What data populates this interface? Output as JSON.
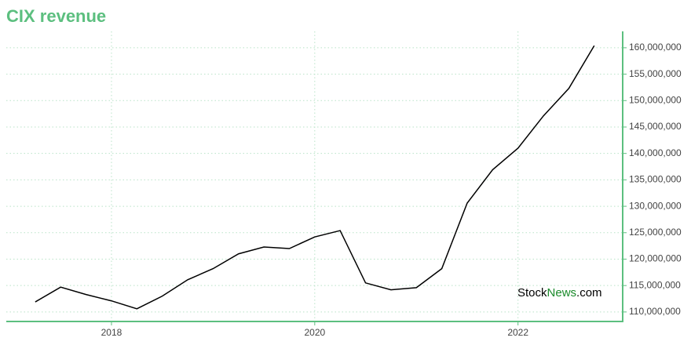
{
  "chart_data": {
    "type": "line",
    "title": "CIX revenue",
    "x": [
      2017.25,
      2017.5,
      2017.75,
      2018.0,
      2018.25,
      2018.5,
      2018.75,
      2019.0,
      2019.25,
      2019.5,
      2019.75,
      2020.0,
      2020.25,
      2020.5,
      2020.75,
      2021.0,
      2021.25,
      2021.5,
      2021.75,
      2022.0,
      2022.25,
      2022.5,
      2022.75
    ],
    "series": [
      {
        "name": "Revenue",
        "color": "#000000",
        "values": [
          111900000,
          114700000,
          113300000,
          112100000,
          110600000,
          113000000,
          116100000,
          118200000,
          121000000,
          122300000,
          122000000,
          124200000,
          125400000,
          115500000,
          114200000,
          114600000,
          118200000,
          130600000,
          136900000,
          141000000,
          147100000,
          152300000,
          160400000
        ]
      }
    ],
    "xlim": [
      2016.965,
      2023.03
    ],
    "xticks": [
      2018,
      2020,
      2022
    ],
    "ylim": [
      108200000,
      163100000
    ],
    "yticks": [
      {
        "value": 110000000,
        "label": "110,000,000"
      },
      {
        "value": 115000000,
        "label": "115,000,000"
      },
      {
        "value": 120000000,
        "label": "120,000,000"
      },
      {
        "value": 125000000,
        "label": "125,000,000"
      },
      {
        "value": 130000000,
        "label": "130,000,000"
      },
      {
        "value": 135000000,
        "label": "135,000,000"
      },
      {
        "value": 140000000,
        "label": "140,000,000"
      },
      {
        "value": 145000000,
        "label": "145,000,000"
      },
      {
        "value": 150000000,
        "label": "150,000,000"
      },
      {
        "value": 155000000,
        "label": "155,000,000"
      },
      {
        "value": 160000000,
        "label": "160,000,000"
      }
    ],
    "grid": true,
    "axis_color": "#5cbf7f",
    "watermark": [
      "Stock",
      "News",
      ".com"
    ]
  }
}
